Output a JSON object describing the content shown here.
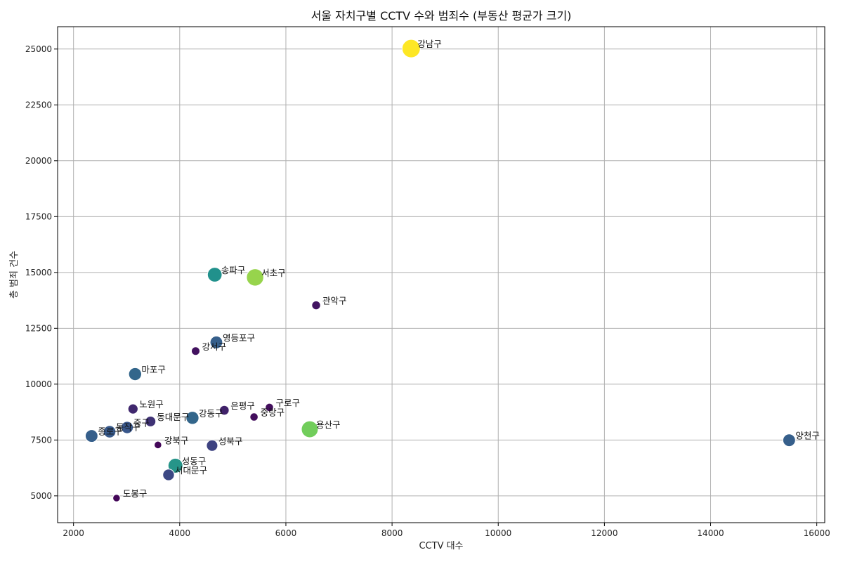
{
  "chart_data": {
    "type": "scatter",
    "title": "서울 자치구별 CCTV 수와 범죄수 (부동산 평균가 크기)",
    "xlabel": "CCTV 대수",
    "ylabel": "총 범죄 건수",
    "xlim": [
      1700,
      16150
    ],
    "ylim": [
      3800,
      26000
    ],
    "xticks": [
      2000,
      4000,
      6000,
      8000,
      10000,
      12000,
      14000,
      16000
    ],
    "yticks": [
      5000,
      7500,
      10000,
      12500,
      15000,
      17500,
      20000,
      22500,
      25000
    ],
    "grid": true,
    "colormap": "viridis",
    "points": [
      {
        "label": "강남구",
        "x": 8360,
        "y": 25020,
        "size": 1.0
      },
      {
        "label": "서초구",
        "x": 5420,
        "y": 14780,
        "size": 0.84
      },
      {
        "label": "송파구",
        "x": 4660,
        "y": 14900,
        "size": 0.5
      },
      {
        "label": "용산구",
        "x": 6450,
        "y": 7980,
        "size": 0.78
      },
      {
        "label": "성동구",
        "x": 3920,
        "y": 6350,
        "size": 0.52
      },
      {
        "label": "관악구",
        "x": 6570,
        "y": 13530,
        "size": 0.06
      },
      {
        "label": "영등포구",
        "x": 4690,
        "y": 11870,
        "size": 0.3
      },
      {
        "label": "강서구",
        "x": 4300,
        "y": 11480,
        "size": 0.05
      },
      {
        "label": "마포구",
        "x": 3160,
        "y": 10450,
        "size": 0.33
      },
      {
        "label": "양천구",
        "x": 15480,
        "y": 7490,
        "size": 0.3
      },
      {
        "label": "노원구",
        "x": 3120,
        "y": 8890,
        "size": 0.12
      },
      {
        "label": "은평구",
        "x": 4840,
        "y": 8830,
        "size": 0.1
      },
      {
        "label": "구로구",
        "x": 5690,
        "y": 8960,
        "size": 0.04
      },
      {
        "label": "중랑구",
        "x": 5400,
        "y": 8530,
        "size": 0.04
      },
      {
        "label": "강동구",
        "x": 4240,
        "y": 8490,
        "size": 0.33
      },
      {
        "label": "동대문구",
        "x": 3450,
        "y": 8330,
        "size": 0.15
      },
      {
        "label": "동작구",
        "x": 2680,
        "y": 7870,
        "size": 0.28
      },
      {
        "label": "중구",
        "x": 3010,
        "y": 8060,
        "size": 0.27
      },
      {
        "label": "종로구",
        "x": 2340,
        "y": 7680,
        "size": 0.3
      },
      {
        "label": "성북구",
        "x": 4610,
        "y": 7250,
        "size": 0.2
      },
      {
        "label": "강북구",
        "x": 3590,
        "y": 7280,
        "size": 0.02
      },
      {
        "label": "서대문구",
        "x": 3790,
        "y": 5940,
        "size": 0.22
      },
      {
        "label": "도봉구",
        "x": 2810,
        "y": 4900,
        "size": 0.02
      }
    ]
  }
}
